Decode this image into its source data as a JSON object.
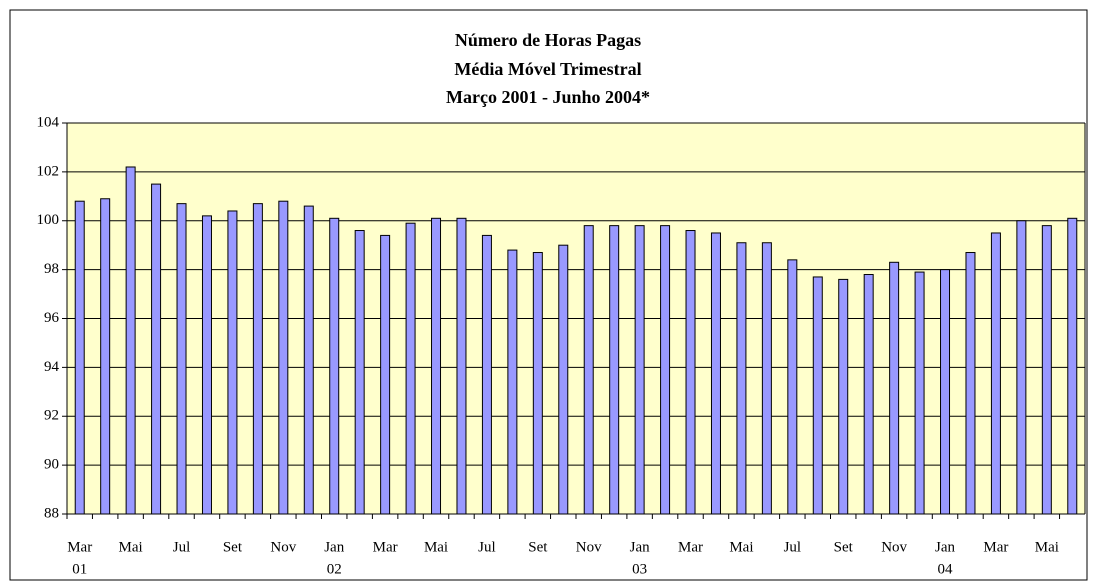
{
  "chart_data": {
    "type": "bar",
    "title": [
      "Número de Horas Pagas",
      "Média Móvel Trimestral",
      "Março 2001 - Junho 2004*"
    ],
    "categories": [
      "Mar",
      null,
      "Mai",
      null,
      "Jul",
      null,
      "Set",
      null,
      "Nov",
      null,
      "Jan",
      null,
      "Mar",
      null,
      "Mai",
      null,
      "Jul",
      null,
      "Set",
      null,
      "Nov",
      null,
      "Jan",
      null,
      "Mar",
      null,
      "Mai",
      null,
      "Jul",
      null,
      "Set",
      null,
      "Nov",
      null,
      "Jan",
      null,
      "Mar",
      null,
      "Mai",
      null
    ],
    "category_years": [
      "01",
      null,
      null,
      null,
      null,
      null,
      null,
      null,
      null,
      null,
      "02",
      null,
      null,
      null,
      null,
      null,
      null,
      null,
      null,
      null,
      null,
      null,
      "03",
      null,
      null,
      null,
      null,
      null,
      null,
      null,
      null,
      null,
      null,
      null,
      "04",
      null,
      null,
      null,
      null,
      null
    ],
    "values": [
      100.8,
      100.9,
      102.2,
      101.5,
      100.7,
      100.2,
      100.4,
      100.7,
      100.8,
      100.6,
      100.1,
      99.6,
      99.4,
      99.9,
      100.1,
      100.1,
      99.4,
      98.8,
      98.7,
      99.0,
      99.8,
      99.8,
      99.8,
      99.8,
      99.6,
      99.5,
      99.1,
      99.1,
      98.4,
      97.7,
      97.6,
      97.8,
      98.3,
      97.9,
      98.0,
      98.7,
      99.5,
      100.0,
      99.8,
      100.1
    ],
    "color": "#9999ff",
    "background": "#ffffcc",
    "ylim": [
      88,
      104
    ],
    "yticks": [
      88,
      90,
      92,
      94,
      96,
      98,
      100,
      102,
      104
    ],
    "grid": true
  }
}
